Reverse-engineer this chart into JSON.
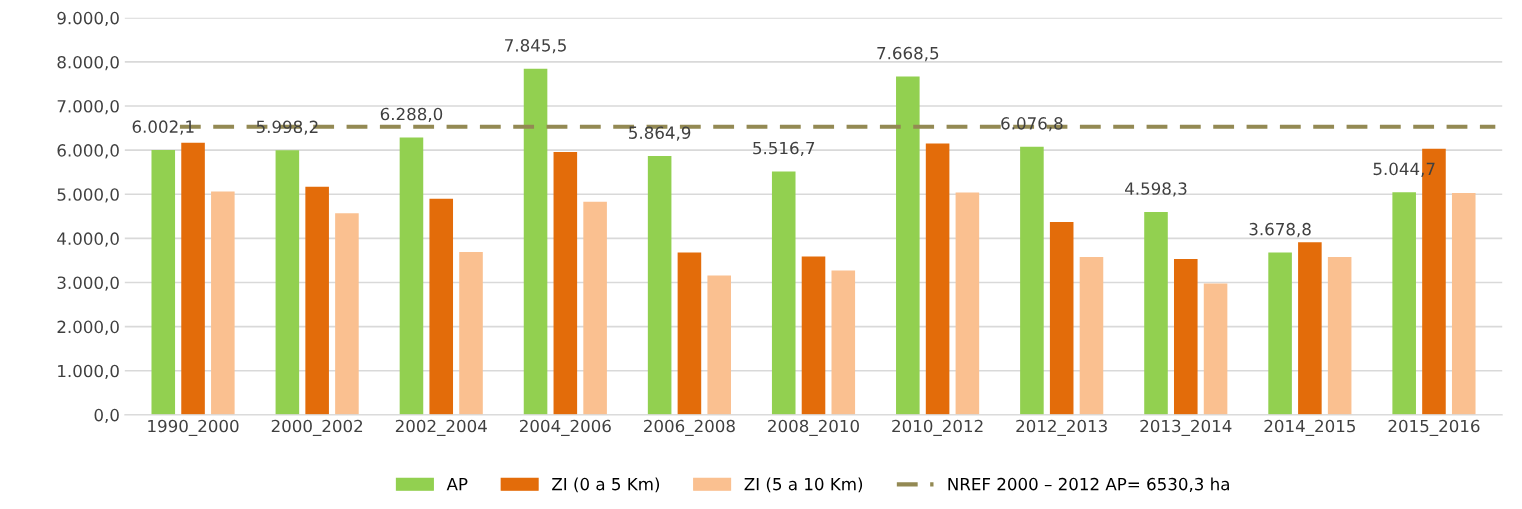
{
  "chart_data": {
    "type": "bar",
    "categories": [
      "1990_2000",
      "2000_2002",
      "2002_2004",
      "2004_2006",
      "2006_2008",
      "2008_2010",
      "2010_2012",
      "2012_2013",
      "2013_2014",
      "2014_2015",
      "2015_2016"
    ],
    "series": [
      {
        "name": "AP",
        "color": "#92d050",
        "values": [
          6002.1,
          5998.2,
          6288.0,
          7845.5,
          5864.9,
          5516.7,
          7668.5,
          6076.8,
          4598.3,
          3678.8,
          5044.7
        ],
        "value_labels": [
          "6.002,1",
          "5.998,2",
          "6.288,0",
          "7.845,5",
          "5.864,9",
          "5.516,7",
          "7.668,5",
          "6.076,8",
          "4.598,3",
          "3.678,8",
          "5.044,7"
        ]
      },
      {
        "name": "ZI (0 a 5 Km)",
        "color": "#e36c0a",
        "values": [
          6170,
          5170,
          4900,
          5960,
          3680,
          3590,
          6150,
          4370,
          3530,
          3910,
          6030
        ]
      },
      {
        "name": "ZI (5 a 10 Km)",
        "color": "#fac090",
        "values": [
          5060,
          4570,
          3690,
          4830,
          3160,
          3270,
          5040,
          3580,
          2980,
          3580,
          5030
        ]
      }
    ],
    "ylim": [
      0,
      9000
    ],
    "yticks": [
      {
        "value": 0,
        "label": "0,0"
      },
      {
        "value": 1000,
        "label": "1.000,0"
      },
      {
        "value": 2000,
        "label": "2.000,0"
      },
      {
        "value": 3000,
        "label": "3.000,0"
      },
      {
        "value": 4000,
        "label": "4.000,0"
      },
      {
        "value": 5000,
        "label": "5.000,0"
      },
      {
        "value": 6000,
        "label": "6.000,0"
      },
      {
        "value": 7000,
        "label": "7.000,0"
      },
      {
        "value": 8000,
        "label": "8.000,0"
      },
      {
        "value": 9000,
        "label": "9.000,0"
      }
    ],
    "ref_lines": [
      {
        "axis": "y",
        "value": 6530.3,
        "label": "NREF 2000 – 2012 AP= 6530,3 ha",
        "color": "#938953",
        "line_style": "dashed"
      }
    ],
    "grid": "y",
    "legend": "bottom"
  }
}
